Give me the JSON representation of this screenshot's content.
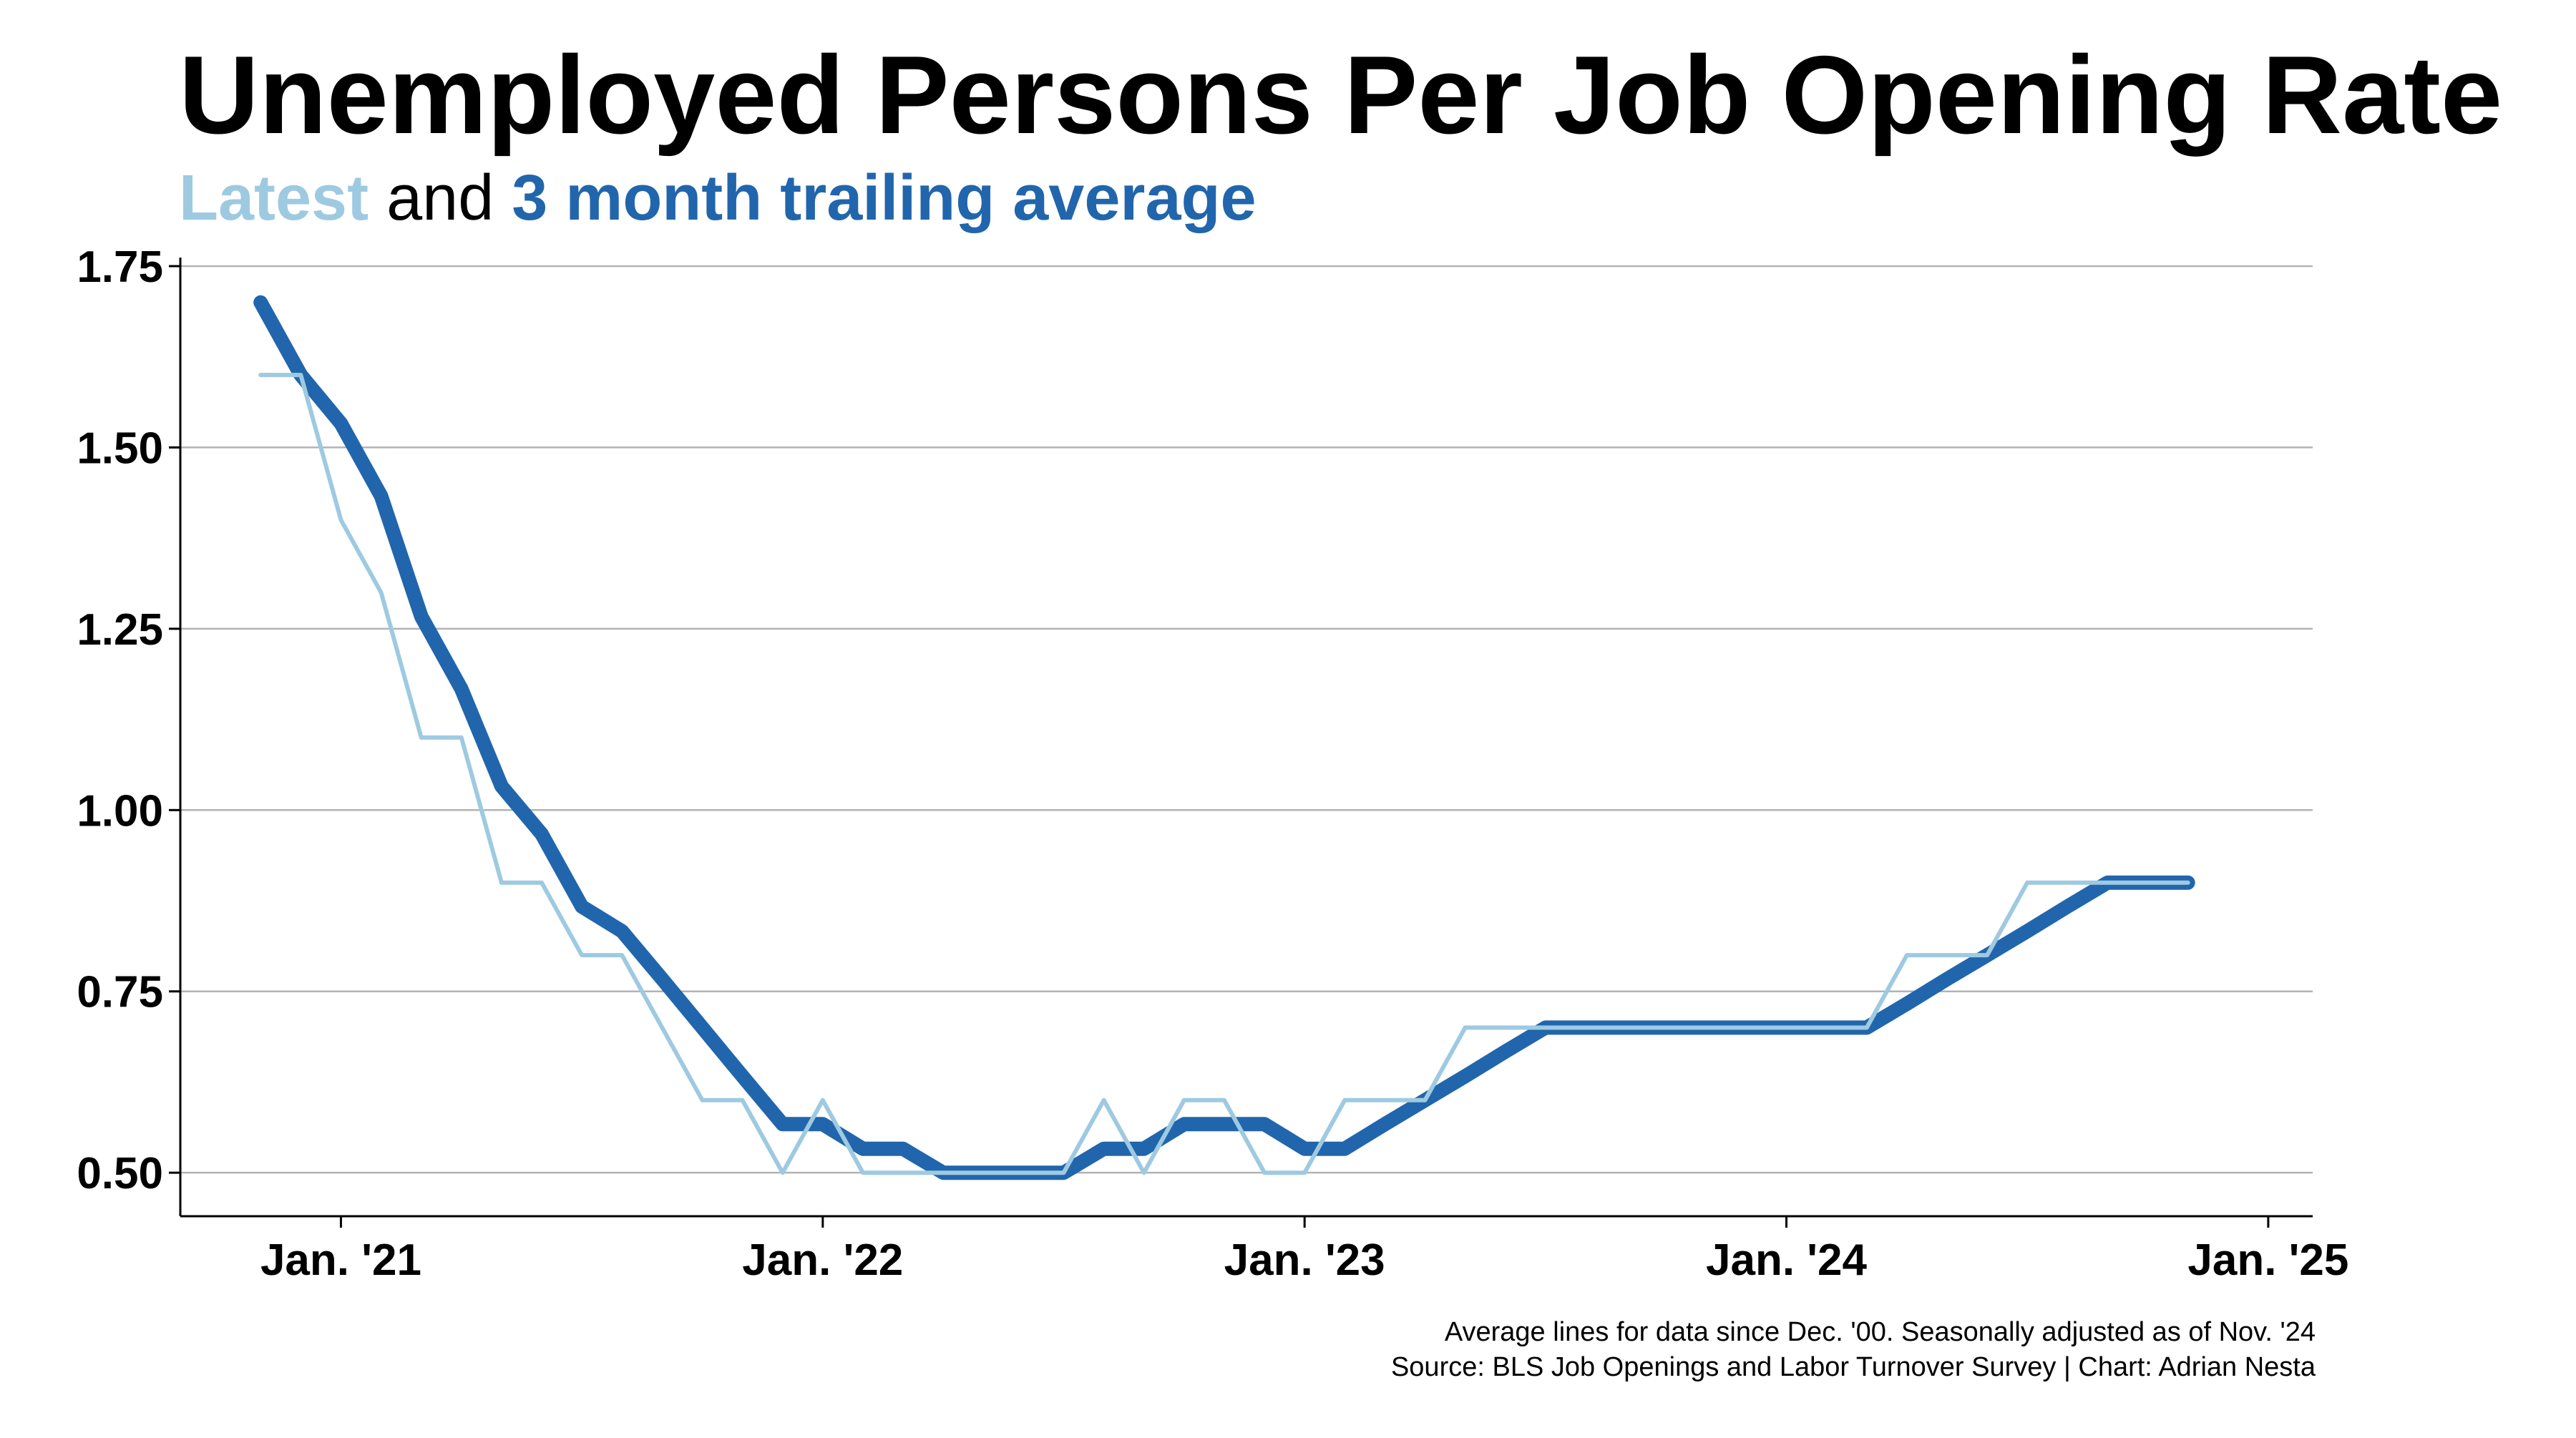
{
  "chart_data": {
    "type": "line",
    "title": "Unemployed Persons Per Job Opening Rate",
    "subtitle": {
      "part1": "Latest",
      "part2": " and ",
      "part3": "3 month trailing average"
    },
    "xlabel": "",
    "ylabel": "",
    "ylim": [
      0.44,
      1.75
    ],
    "yticks": [
      "0.50",
      "0.75",
      "1.00",
      "1.25",
      "1.50",
      "1.75"
    ],
    "xticks": [
      "Jan. '21",
      "Jan. '22",
      "Jan. '23",
      "Jan. '24",
      "Jan. '25"
    ],
    "grid": "horizontal",
    "colors": {
      "latest": "#9ecae1",
      "trailing": "#2166ac"
    },
    "series": [
      {
        "key": "latest",
        "x": [
          "2020-11",
          "2020-12",
          "2021-01",
          "2021-02",
          "2021-03",
          "2021-04",
          "2021-05",
          "2021-06",
          "2021-07",
          "2021-08",
          "2021-09",
          "2021-10",
          "2021-11",
          "2021-12",
          "2022-01",
          "2022-02",
          "2022-03",
          "2022-04",
          "2022-05",
          "2022-06",
          "2022-07",
          "2022-08",
          "2022-09",
          "2022-10",
          "2022-11",
          "2022-12",
          "2023-01",
          "2023-02",
          "2023-03",
          "2023-04",
          "2023-05",
          "2023-06",
          "2023-07",
          "2023-08",
          "2023-09",
          "2023-10",
          "2023-11",
          "2023-12",
          "2024-01",
          "2024-02",
          "2024-03",
          "2024-04",
          "2024-05",
          "2024-06",
          "2024-07",
          "2024-08",
          "2024-09",
          "2024-10",
          "2024-11"
        ],
        "values": [
          1.6,
          1.6,
          1.4,
          1.3,
          1.1,
          1.1,
          0.9,
          0.9,
          0.8,
          0.8,
          0.7,
          0.6,
          0.6,
          0.5,
          0.6,
          0.5,
          0.5,
          0.5,
          0.5,
          0.5,
          0.5,
          0.6,
          0.5,
          0.6,
          0.6,
          0.5,
          0.5,
          0.6,
          0.6,
          0.6,
          0.7,
          0.7,
          0.7,
          0.7,
          0.7,
          0.7,
          0.7,
          0.7,
          0.7,
          0.7,
          0.7,
          0.8,
          0.8,
          0.8,
          0.9,
          0.9,
          0.9,
          0.9,
          0.9
        ]
      },
      {
        "key": "trailing",
        "x": [
          "2020-11",
          "2020-12",
          "2021-01",
          "2021-02",
          "2021-03",
          "2021-04",
          "2021-05",
          "2021-06",
          "2021-07",
          "2021-08",
          "2021-09",
          "2021-10",
          "2021-11",
          "2021-12",
          "2022-01",
          "2022-02",
          "2022-03",
          "2022-04",
          "2022-05",
          "2022-06",
          "2022-07",
          "2022-08",
          "2022-09",
          "2022-10",
          "2022-11",
          "2022-12",
          "2023-01",
          "2023-02",
          "2023-03",
          "2023-04",
          "2023-05",
          "2023-06",
          "2023-07",
          "2023-08",
          "2023-09",
          "2023-10",
          "2023-11",
          "2023-12",
          "2024-01",
          "2024-02",
          "2024-03",
          "2024-04",
          "2024-05",
          "2024-06",
          "2024-07",
          "2024-08",
          "2024-09",
          "2024-10",
          "2024-11"
        ],
        "values": [
          1.7,
          1.6,
          1.533,
          1.433,
          1.267,
          1.167,
          1.033,
          0.967,
          0.867,
          0.833,
          0.767,
          0.7,
          0.633,
          0.567,
          0.567,
          0.533,
          0.533,
          0.5,
          0.5,
          0.5,
          0.5,
          0.533,
          0.533,
          0.567,
          0.567,
          0.567,
          0.533,
          0.533,
          0.567,
          0.6,
          0.633,
          0.667,
          0.7,
          0.7,
          0.7,
          0.7,
          0.7,
          0.7,
          0.7,
          0.7,
          0.7,
          0.733,
          0.767,
          0.8,
          0.833,
          0.867,
          0.9,
          0.9,
          0.9
        ]
      }
    ],
    "footnote": {
      "line1": "Average lines for data since Dec. '00. Seasonally adjusted as of Nov. '24",
      "line2": "Source: BLS Job Openings and Labor Turnover Survey | Chart: Adrian Nesta"
    }
  }
}
